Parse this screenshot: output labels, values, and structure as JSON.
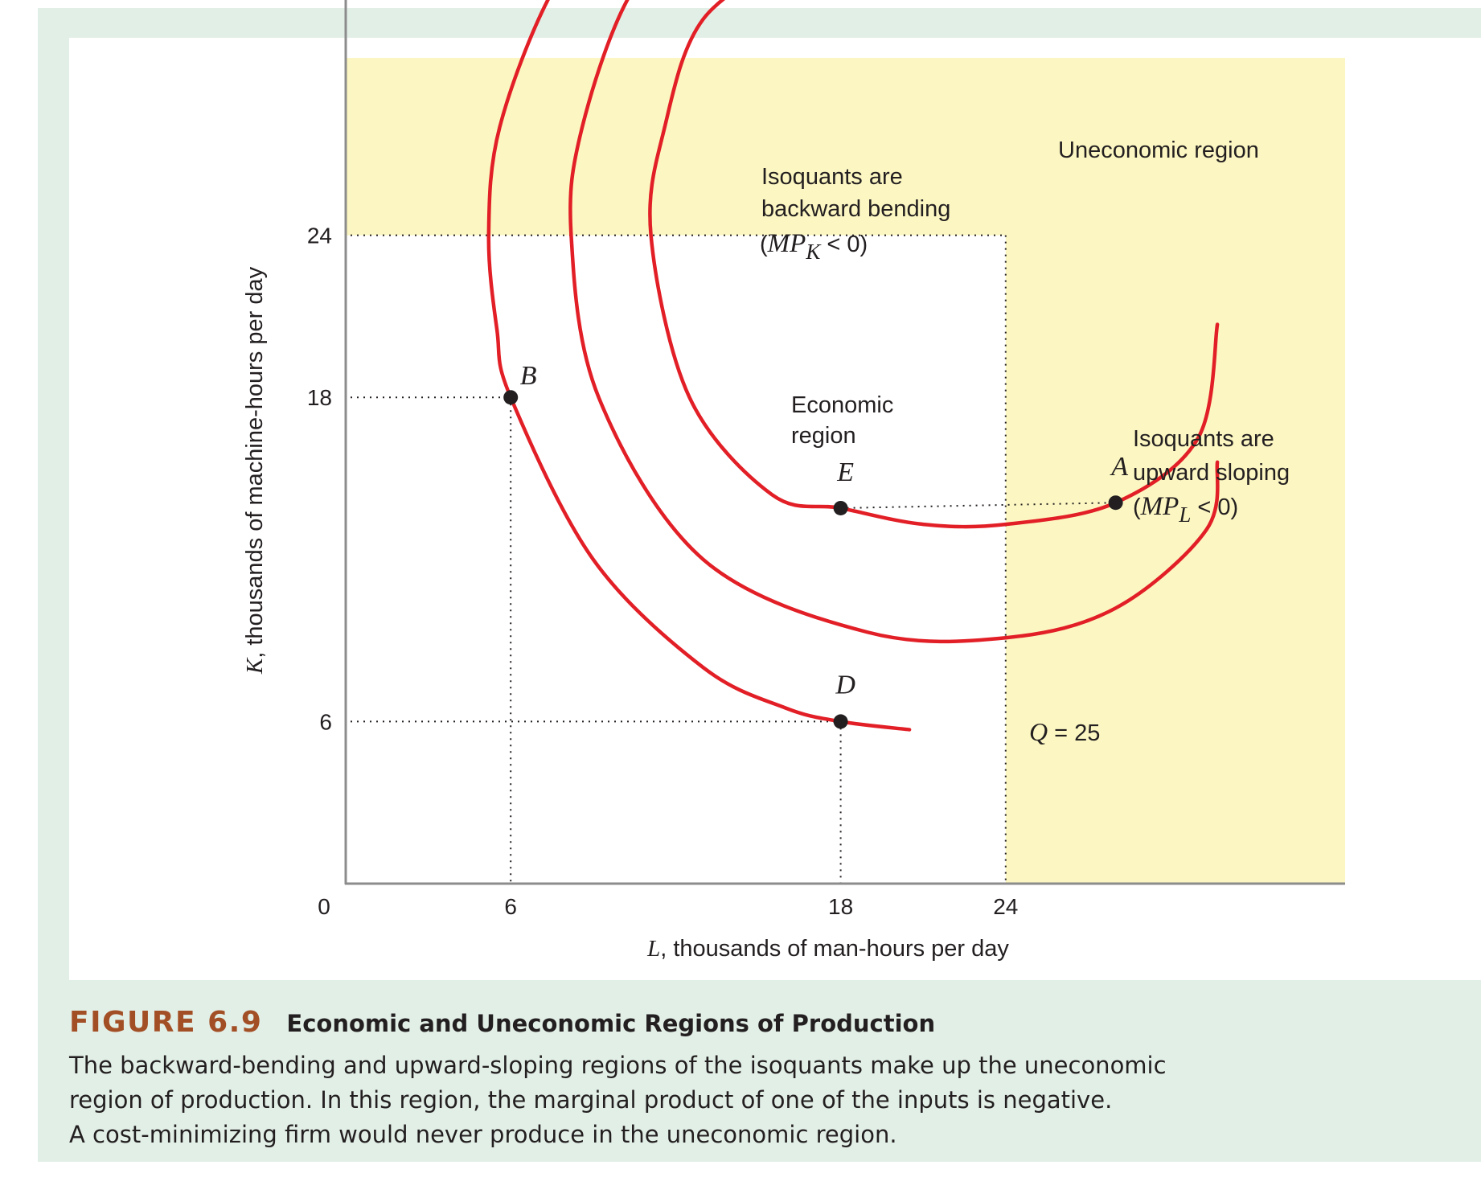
{
  "colors": {
    "panel": "#e2efe7",
    "uneconomic_region": "#fcf7c2",
    "isoquant": "#e21f26",
    "points": "#231f20",
    "figure_number": "#a34f26"
  },
  "chart_data": {
    "type": "line",
    "xlabel_var": "L",
    "xlabel": ", thousands of man-hours per day",
    "ylabel_var": "K",
    "ylabel": ", thousands of machine-hours per day",
    "xlim": [
      0,
      32
    ],
    "ylim": [
      0,
      36.5
    ],
    "origin_label": "0",
    "x_ticks": [
      "6",
      "18",
      "24"
    ],
    "x_tick_values": [
      6,
      18,
      24
    ],
    "y_ticks": [
      "24",
      "18",
      "6"
    ],
    "y_tick_values": [
      24,
      18,
      6
    ],
    "grid": false,
    "regions": {
      "uneconomic_label": "Uneconomic region",
      "economic_label_1": "Economic",
      "economic_label_2": "region",
      "economic_bounds": {
        "L_max": 24,
        "K_max": 24
      }
    },
    "annotations": {
      "backward_1": "Isoquants are",
      "backward_2": "backward bending",
      "backward_3_open": "(",
      "backward_3_mp": "MP",
      "backward_3_sub": "K",
      "backward_3_close": " < 0)",
      "upward_1": "Isoquants are",
      "upward_2": "upward sloping",
      "upward_3_open": "(",
      "upward_3_mp": "MP",
      "upward_3_sub": "L",
      "upward_3_close": " < 0)",
      "q_var": "Q",
      "q_value": " = 25"
    },
    "series": [
      {
        "label": "Q = 25",
        "points": [
          [
            9.9,
            36.1
          ],
          [
            7.5,
            33
          ],
          [
            5.6,
            28
          ],
          [
            5.2,
            24
          ],
          [
            5.5,
            20.5
          ],
          [
            6,
            18
          ],
          [
            9,
            12
          ],
          [
            13,
            8
          ],
          [
            16,
            6.5
          ],
          [
            18,
            6
          ],
          [
            20.5,
            5.7
          ]
        ]
      },
      {
        "points": [
          [
            13,
            35.5
          ],
          [
            10.4,
            33
          ],
          [
            8.6,
            28
          ],
          [
            8.2,
            24
          ],
          [
            9.2,
            18
          ],
          [
            13,
            12
          ],
          [
            19,
            9.3
          ],
          [
            24,
            9.1
          ],
          [
            28,
            10.2
          ],
          [
            31.3,
            13.1
          ],
          [
            31.7,
            15.6
          ]
        ]
      },
      {
        "points": [
          [
            16.3,
            34.4
          ],
          [
            13,
            32
          ],
          [
            11.6,
            28
          ],
          [
            11.1,
            24
          ],
          [
            12.5,
            18
          ],
          [
            15.5,
            14.4
          ],
          [
            18,
            13.9
          ],
          [
            21,
            13.3
          ],
          [
            24,
            13.3
          ],
          [
            28,
            14.1
          ],
          [
            31,
            16.5
          ],
          [
            31.7,
            20.7
          ]
        ]
      }
    ],
    "points": [
      {
        "label": "B",
        "L": 6,
        "K": 18
      },
      {
        "label": "E",
        "L": 18,
        "K": 13.9
      },
      {
        "label": "A",
        "L": 28,
        "K": 14.1
      },
      {
        "label": "D",
        "L": 18,
        "K": 6
      }
    ]
  },
  "caption": {
    "figure_number": "FIGURE 6.9",
    "title": "Economic and Uneconomic Regions of Production",
    "line1": "The backward-bending and upward-sloping regions of the isoquants make up the uneconomic",
    "line2": "region of production. In this region, the marginal product of one of the inputs is negative.",
    "line3": "A cost-minimizing firm would never produce in the uneconomic region."
  }
}
